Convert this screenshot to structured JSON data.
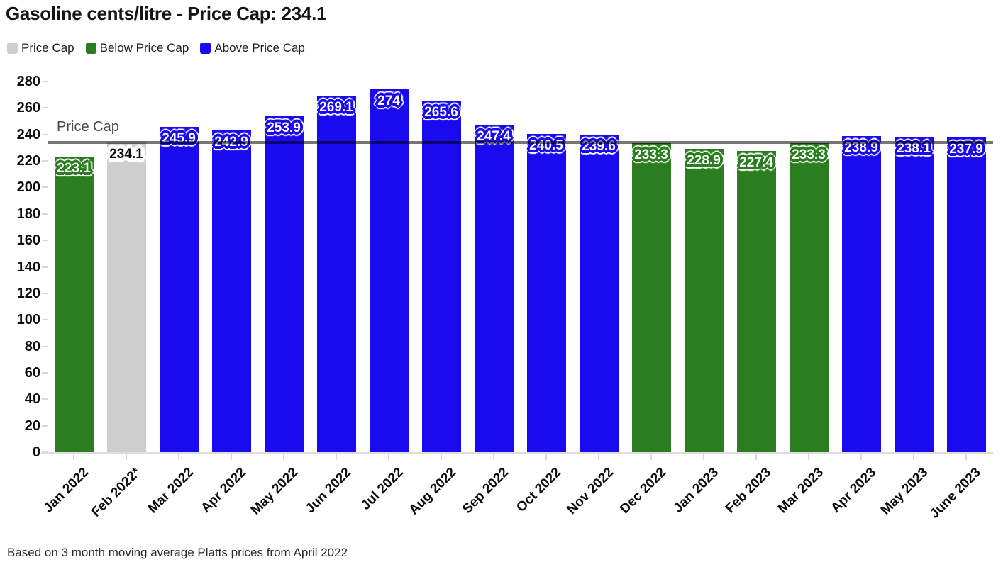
{
  "header": {
    "title": "Gasoline cents/litre - Price Cap: 234.1"
  },
  "legend": {
    "items": [
      {
        "label": "Price Cap",
        "color": "#cecece"
      },
      {
        "label": "Below Price Cap",
        "color": "#2b7e20"
      },
      {
        "label": "Above Price Cap",
        "color": "#1a0af0"
      }
    ]
  },
  "annotation": {
    "price_cap_label": "Price Cap"
  },
  "footer": {
    "note": "Based on 3 month moving average Platts prices from April 2022"
  },
  "chart_data": {
    "type": "bar",
    "title": "Gasoline cents/litre - Price Cap: 234.1",
    "categories": [
      "Jan 2022",
      "Feb 2022*",
      "Mar 2022",
      "Apr 2022",
      "May 2022",
      "Jun 2022",
      "Jul 2022",
      "Aug 2022",
      "Sep 2022",
      "Oct 2022",
      "Nov 2022",
      "Dec 2022",
      "Jan 2023",
      "Feb 2023",
      "Mar 2023",
      "Apr 2023",
      "May 2023",
      "June 2023"
    ],
    "values": [
      223.1,
      234.1,
      245.9,
      242.9,
      253.9,
      269.1,
      274,
      265.6,
      247.4,
      240.5,
      239.6,
      233.3,
      228.9,
      227.4,
      233.3,
      238.9,
      238.1,
      237.9
    ],
    "statuses": [
      "below",
      "cap",
      "above",
      "above",
      "above",
      "above",
      "above",
      "above",
      "above",
      "above",
      "above",
      "below",
      "below",
      "below",
      "below",
      "above",
      "above",
      "above"
    ],
    "price_cap": 234.1,
    "price_cap_line_label": "Price Cap",
    "ylabel": "",
    "xlabel": "",
    "ylim": [
      0,
      280
    ],
    "ytick_step": 20,
    "grid": false,
    "legend_position": "top-left",
    "colors": {
      "cap": "#cecece",
      "below": "#2b7e20",
      "above": "#1a0af0",
      "cap_line": "#757575",
      "cap_value_text": "#0d0d0d",
      "value_text": "#ffffff"
    },
    "footnote": "Based on 3 month moving average Platts prices from April 2022"
  }
}
